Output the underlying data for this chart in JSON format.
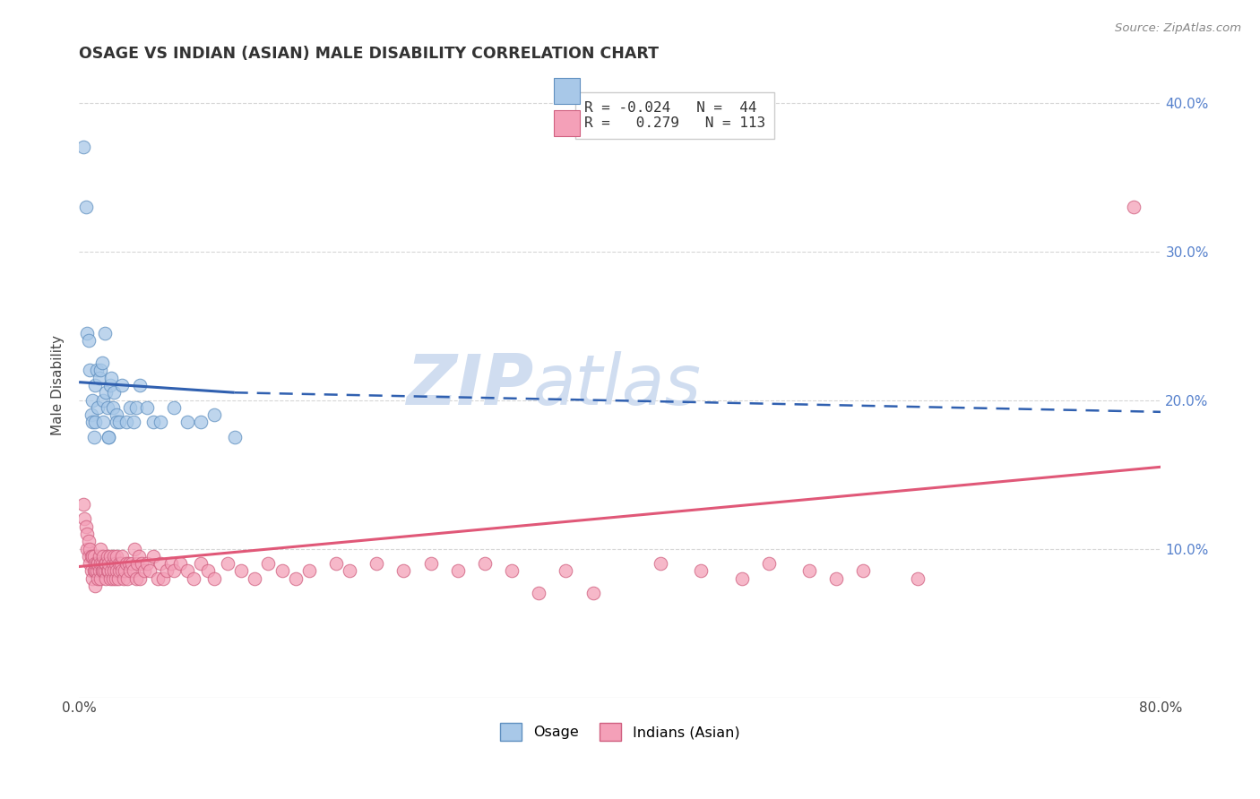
{
  "title": "OSAGE VS INDIAN (ASIAN) MALE DISABILITY CORRELATION CHART",
  "source": "Source: ZipAtlas.com",
  "ylabel": "Male Disability",
  "xlim": [
    0.0,
    0.8
  ],
  "ylim": [
    0.0,
    0.42
  ],
  "osage_color": "#a8c8e8",
  "osage_edge": "#6090c0",
  "indian_color": "#f4a0b8",
  "indian_edge": "#d06080",
  "trendline_osage": "#3060b0",
  "trendline_indian": "#e05878",
  "grid_color": "#cccccc",
  "watermark_color": "#d0ddf0",
  "osage_x": [
    0.003,
    0.005,
    0.006,
    0.007,
    0.008,
    0.009,
    0.01,
    0.01,
    0.011,
    0.012,
    0.012,
    0.013,
    0.014,
    0.015,
    0.016,
    0.017,
    0.018,
    0.018,
    0.019,
    0.02,
    0.021,
    0.022,
    0.022,
    0.023,
    0.024,
    0.025,
    0.026,
    0.028,
    0.028,
    0.03,
    0.032,
    0.035,
    0.038,
    0.04,
    0.042,
    0.045,
    0.05,
    0.055,
    0.06,
    0.07,
    0.08,
    0.09,
    0.1,
    0.115
  ],
  "osage_y": [
    0.37,
    0.33,
    0.245,
    0.24,
    0.22,
    0.19,
    0.2,
    0.185,
    0.175,
    0.21,
    0.185,
    0.22,
    0.195,
    0.215,
    0.22,
    0.225,
    0.2,
    0.185,
    0.245,
    0.205,
    0.195,
    0.175,
    0.175,
    0.21,
    0.215,
    0.195,
    0.205,
    0.19,
    0.185,
    0.185,
    0.21,
    0.185,
    0.195,
    0.185,
    0.195,
    0.21,
    0.195,
    0.185,
    0.185,
    0.195,
    0.185,
    0.185,
    0.19,
    0.175
  ],
  "indian_x": [
    0.003,
    0.004,
    0.005,
    0.006,
    0.006,
    0.007,
    0.007,
    0.008,
    0.008,
    0.009,
    0.009,
    0.01,
    0.01,
    0.011,
    0.011,
    0.012,
    0.012,
    0.012,
    0.013,
    0.013,
    0.014,
    0.014,
    0.015,
    0.015,
    0.016,
    0.016,
    0.016,
    0.017,
    0.017,
    0.018,
    0.018,
    0.019,
    0.019,
    0.02,
    0.02,
    0.021,
    0.021,
    0.022,
    0.022,
    0.023,
    0.023,
    0.024,
    0.025,
    0.025,
    0.026,
    0.026,
    0.027,
    0.027,
    0.028,
    0.028,
    0.029,
    0.03,
    0.03,
    0.031,
    0.032,
    0.032,
    0.033,
    0.034,
    0.035,
    0.036,
    0.037,
    0.038,
    0.039,
    0.04,
    0.041,
    0.042,
    0.043,
    0.044,
    0.045,
    0.046,
    0.048,
    0.05,
    0.052,
    0.055,
    0.058,
    0.06,
    0.062,
    0.065,
    0.068,
    0.07,
    0.075,
    0.08,
    0.085,
    0.09,
    0.095,
    0.1,
    0.11,
    0.12,
    0.13,
    0.14,
    0.15,
    0.16,
    0.17,
    0.19,
    0.2,
    0.22,
    0.24,
    0.26,
    0.28,
    0.3,
    0.32,
    0.34,
    0.36,
    0.38,
    0.43,
    0.46,
    0.49,
    0.51,
    0.54,
    0.56,
    0.58,
    0.62,
    0.78
  ],
  "indian_y": [
    0.13,
    0.12,
    0.115,
    0.1,
    0.11,
    0.095,
    0.105,
    0.09,
    0.1,
    0.085,
    0.095,
    0.08,
    0.095,
    0.085,
    0.095,
    0.085,
    0.09,
    0.075,
    0.085,
    0.09,
    0.08,
    0.09,
    0.085,
    0.095,
    0.08,
    0.09,
    0.1,
    0.085,
    0.09,
    0.085,
    0.095,
    0.085,
    0.09,
    0.08,
    0.09,
    0.085,
    0.095,
    0.085,
    0.09,
    0.08,
    0.095,
    0.085,
    0.08,
    0.09,
    0.085,
    0.095,
    0.08,
    0.09,
    0.085,
    0.095,
    0.08,
    0.085,
    0.09,
    0.09,
    0.085,
    0.095,
    0.08,
    0.085,
    0.09,
    0.08,
    0.09,
    0.085,
    0.09,
    0.085,
    0.1,
    0.08,
    0.09,
    0.095,
    0.08,
    0.09,
    0.085,
    0.09,
    0.085,
    0.095,
    0.08,
    0.09,
    0.08,
    0.085,
    0.09,
    0.085,
    0.09,
    0.085,
    0.08,
    0.09,
    0.085,
    0.08,
    0.09,
    0.085,
    0.08,
    0.09,
    0.085,
    0.08,
    0.085,
    0.09,
    0.085,
    0.09,
    0.085,
    0.09,
    0.085,
    0.09,
    0.085,
    0.07,
    0.085,
    0.07,
    0.09,
    0.085,
    0.08,
    0.09,
    0.085,
    0.08,
    0.085,
    0.08,
    0.33
  ],
  "osage_trendline_x0": 0.0,
  "osage_trendline_y0": 0.212,
  "osage_trendline_x1": 0.115,
  "osage_trendline_y1": 0.205,
  "osage_trendline_dashed_x0": 0.115,
  "osage_trendline_dashed_y0": 0.205,
  "osage_trendline_dashed_x1": 0.8,
  "osage_trendline_dashed_y1": 0.192,
  "indian_trendline_x0": 0.0,
  "indian_trendline_y0": 0.088,
  "indian_trendline_x1": 0.8,
  "indian_trendline_y1": 0.155
}
